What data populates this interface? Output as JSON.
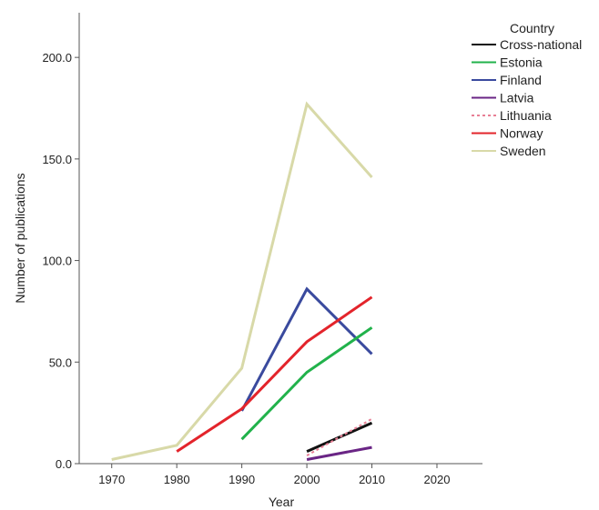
{
  "chart_data": {
    "type": "line",
    "xlabel": "Year",
    "ylabel": "Number of publications",
    "xlim": [
      1965,
      2027
    ],
    "ylim": [
      0,
      222
    ],
    "x_ticks": [
      1970,
      1980,
      1990,
      2000,
      2010,
      2020
    ],
    "y_ticks": [
      0,
      50,
      100,
      150,
      200
    ],
    "x_tick_labels": [
      "1970",
      "1980",
      "1990",
      "2000",
      "2010",
      "2020"
    ],
    "y_tick_labels": [
      "0.0",
      "50.0",
      "100.0",
      "150.0",
      "200.0"
    ],
    "grid": false,
    "legend": {
      "title": "Country",
      "placement": "right",
      "entries": [
        {
          "name": "Cross-national",
          "color": "#111111",
          "dash": "solid"
        },
        {
          "name": "Estonia",
          "color": "#21b24b",
          "dash": "solid"
        },
        {
          "name": "Finland",
          "color": "#3a4a9e",
          "dash": "solid"
        },
        {
          "name": "Latvia",
          "color": "#6a2585",
          "dash": "solid"
        },
        {
          "name": "Lithuania",
          "color": "#e87f95",
          "dash": "dashed"
        },
        {
          "name": "Norway",
          "color": "#e3242b",
          "dash": "solid"
        },
        {
          "name": "Sweden",
          "color": "#d8d9a8",
          "dash": "solid"
        }
      ]
    },
    "series": [
      {
        "name": "Sweden",
        "color": "#d8d9a8",
        "dash": "solid",
        "x": [
          1970,
          1980,
          1990,
          2000,
          2010
        ],
        "y": [
          2,
          9,
          47,
          177,
          141
        ]
      },
      {
        "name": "Finland",
        "color": "#3a4a9e",
        "dash": "solid",
        "x": [
          1990,
          2000,
          2010
        ],
        "y": [
          26,
          86,
          54
        ]
      },
      {
        "name": "Estonia",
        "color": "#21b24b",
        "dash": "solid",
        "x": [
          1990,
          2000,
          2010
        ],
        "y": [
          12,
          45,
          67
        ]
      },
      {
        "name": "Norway",
        "color": "#e3242b",
        "dash": "solid",
        "x": [
          1980,
          1990,
          2000,
          2010
        ],
        "y": [
          6,
          27,
          60,
          82
        ]
      },
      {
        "name": "Cross-national",
        "color": "#111111",
        "dash": "solid",
        "x": [
          2000,
          2010
        ],
        "y": [
          6,
          20
        ]
      },
      {
        "name": "Lithuania",
        "color": "#e87f95",
        "dash": "dashed",
        "x": [
          2000,
          2010
        ],
        "y": [
          4,
          22
        ]
      },
      {
        "name": "Latvia",
        "color": "#6a2585",
        "dash": "solid",
        "x": [
          2000,
          2010
        ],
        "y": [
          2,
          8
        ]
      }
    ]
  }
}
